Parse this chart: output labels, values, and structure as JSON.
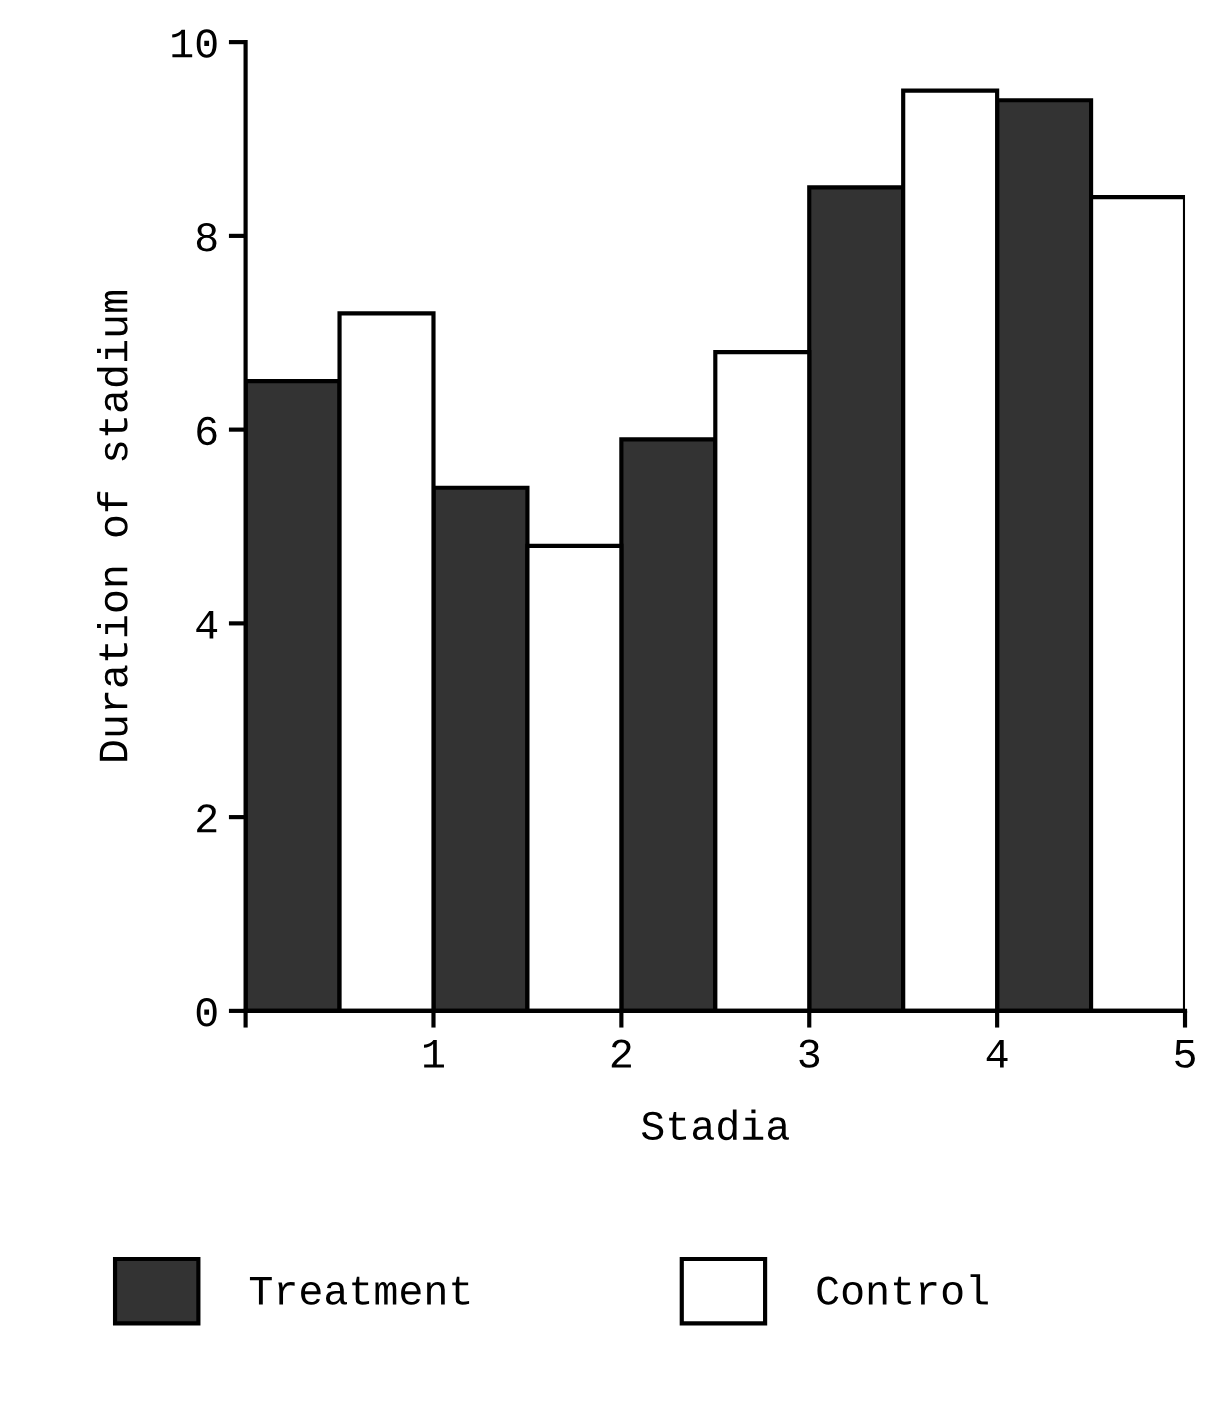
{
  "chart_data": {
    "type": "bar",
    "xlabel": "Stadia",
    "ylabel": "Duration of stadium",
    "xlim": [
      0,
      5
    ],
    "xticks": [
      {
        "value": 0,
        "label": null
      },
      1,
      2,
      3,
      4,
      5
    ],
    "ylim": [
      0,
      10
    ],
    "yticks": [
      0,
      2,
      4,
      6,
      8,
      10
    ],
    "series": [
      {
        "name": "Treatment",
        "color": "#333333",
        "x": [
          0.25,
          1.25,
          2.25,
          3.25,
          4.25
        ],
        "values": [
          6.5,
          5.4,
          5.9,
          8.5,
          9.4
        ]
      },
      {
        "name": "Control",
        "color": "#ffffff",
        "x": [
          0.75,
          1.75,
          2.75,
          3.75,
          4.75
        ],
        "values": [
          7.2,
          4.8,
          6.8,
          9.5,
          8.4
        ]
      }
    ],
    "grid": false,
    "legend": "bottom"
  }
}
